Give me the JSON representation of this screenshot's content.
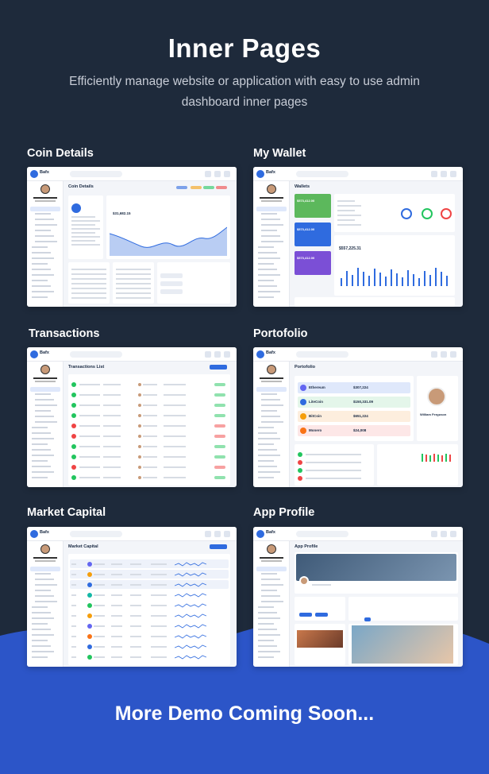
{
  "header": {
    "title": "Inner Pages",
    "subtitle": "Efficiently manage website or application with easy to use admin dashboard inner pages"
  },
  "pages": [
    {
      "label": "Coin Details",
      "card_title": "Coin Details",
      "stat": "$31,682.15"
    },
    {
      "label": "My Wallet",
      "card_title": "Wallets",
      "stat": "$557,225.31",
      "wallet_amounts": [
        "$573,412.00",
        "$573,412.00",
        "$573,412.00"
      ]
    },
    {
      "label": "Transactions",
      "card_title": "Transactions List"
    },
    {
      "label": "Portofolio",
      "card_title": "Portofolio",
      "coins": [
        "Ethereum",
        "LiteCoin",
        "BitCoin",
        "Monero"
      ],
      "coin_values": [
        "$307,224",
        "$150,331.09",
        "$651,224",
        "$24,008"
      ],
      "profile_name": "William Ferguson"
    },
    {
      "label": "Market Capital",
      "card_title": "Market Capital"
    },
    {
      "label": "App Profile",
      "card_title": "App Profile"
    }
  ],
  "brand": {
    "logo_text": "Bafx",
    "user_name": "Yolin William"
  },
  "footer": {
    "text": "More Demo Coming Soon..."
  },
  "colors": {
    "background": "#1e2a3b",
    "wave": "#2c55c8",
    "accent": "#2f6bdf"
  }
}
